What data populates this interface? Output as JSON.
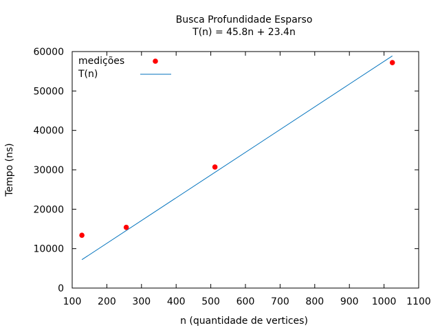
{
  "chart_data": {
    "type": "scatter",
    "title": "Busca Profundidade Esparso",
    "subtitle": "T(n) = 45.8n + 23.4n",
    "xlabel": "n (quantidade de vertices)",
    "ylabel": "Tempo (ns)",
    "xlim": [
      100,
      1100
    ],
    "ylim": [
      0,
      60000
    ],
    "x_ticks": [
      100,
      200,
      300,
      400,
      500,
      600,
      700,
      800,
      900,
      1000,
      1100
    ],
    "y_ticks": [
      0,
      10000,
      20000,
      30000,
      40000,
      50000,
      60000
    ],
    "grid": false,
    "legend_position": "top-left",
    "series": [
      {
        "name": "medições",
        "kind": "points",
        "color": "#ff0000",
        "points": [
          {
            "x": 128,
            "y": 13400
          },
          {
            "x": 256,
            "y": 15400
          },
          {
            "x": 512,
            "y": 30700
          },
          {
            "x": 1024,
            "y": 57200
          }
        ]
      },
      {
        "name": "T(n)",
        "kind": "line",
        "color": "#0072bd",
        "points": [
          {
            "x": 128,
            "y": 7200
          },
          {
            "x": 1024,
            "y": 58900
          }
        ]
      }
    ]
  }
}
